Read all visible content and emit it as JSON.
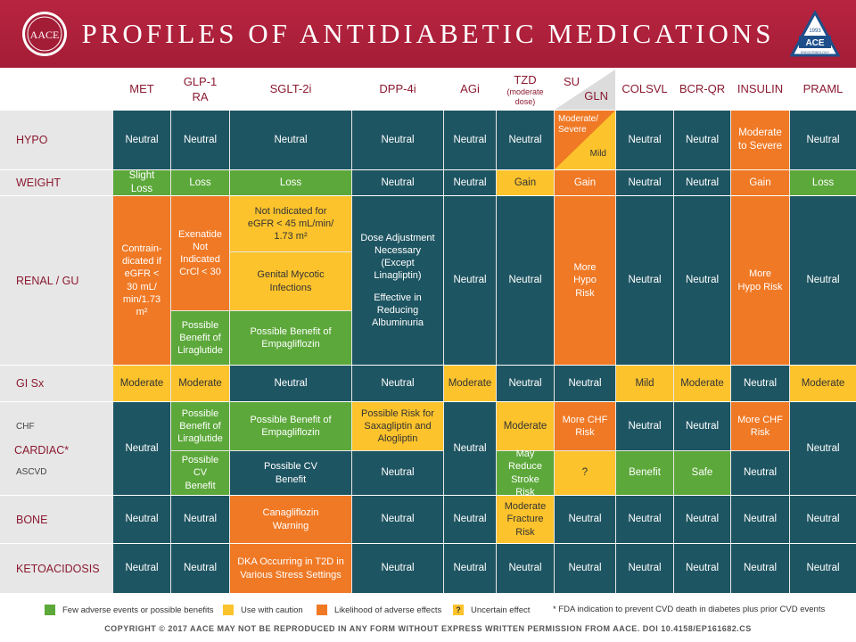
{
  "title": "PROFILES OF ANTIDIABETIC MEDICATIONS",
  "logos": {
    "left": "AACE",
    "right": "ACE",
    "right_year": "1993",
    "right_sub": "ENDOCRINOLOGY"
  },
  "colors": {
    "header_bg": "#ac2039",
    "teal": "#1e5562",
    "green": "#5ca83a",
    "yellow": "#fcc32c",
    "orange": "#f07925",
    "label_red": "#8b1a30",
    "row_band": "#e6e6e6"
  },
  "chart_data": {
    "type": "table",
    "columns": [
      {
        "label": "MET"
      },
      {
        "label": "GLP-1 RA"
      },
      {
        "label": "SGLT-2i"
      },
      {
        "label": "DPP-4i"
      },
      {
        "label": "AGi"
      },
      {
        "label": "TZD",
        "sublabel": "(moderate dose)"
      },
      {
        "label": "SU",
        "label2": "GLN"
      },
      {
        "label": "COLSVL"
      },
      {
        "label": "BCR-QR"
      },
      {
        "label": "INSULIN"
      },
      {
        "label": "PRAML"
      }
    ],
    "rows": [
      {
        "label": "HYPO"
      },
      {
        "label": "WEIGHT"
      },
      {
        "label": "RENAL / GU"
      },
      {
        "label": "GI Sx"
      },
      {
        "label": "CARDIAC*",
        "sublabels": [
          "CHF",
          "ASCVD"
        ]
      },
      {
        "label": "BONE"
      },
      {
        "label": "KETOACIDOSIS"
      }
    ],
    "cells": {
      "hypo": [
        "Neutral",
        "Neutral",
        "Neutral",
        "Neutral",
        "Neutral",
        "Neutral",
        "",
        "Neutral",
        "Neutral",
        "Moderate to Severe",
        "Neutral"
      ],
      "hypo_su": "Moderate/ Severe",
      "hypo_gln": "Mild",
      "weight": [
        "Slight Loss",
        "Loss",
        "Loss",
        "Neutral",
        "Neutral",
        "Gain",
        "Gain",
        "Neutral",
        "Neutral",
        "Gain",
        "Loss"
      ],
      "renal": {
        "met": "Contrain-dicated if eGFR < 30 mL/ min/1.73 m²",
        "glp1_top": "Exenatide Not Indicated CrCl < 30",
        "glp1_bottom": "Possible Benefit of Liraglutide",
        "sglt2_a": "Not Indicated for eGFR < 45 mL/min/ 1.73 m²",
        "sglt2_b": "Genital Mycotic Infections",
        "sglt2_c": "Possible Benefit of Empagliflozin",
        "dpp4_a": "Dose Adjustment Necessary (Except Linagliptin)",
        "dpp4_b": "Effective in Reducing Albuminuria",
        "agi": "Neutral",
        "tzd": "Neutral",
        "su": "More Hypo Risk",
        "colsvl": "Neutral",
        "bcrqr": "Neutral",
        "insulin": "More Hypo Risk",
        "praml": "Neutral"
      },
      "gi": [
        "Moderate",
        "Moderate",
        "Neutral",
        "Neutral",
        "Moderate",
        "Neutral",
        "Neutral",
        "Mild",
        "Moderate",
        "Neutral",
        "Moderate"
      ],
      "cardiac": {
        "met": "Neutral",
        "glp1_chf": "Possible Benefit of Liraglutide",
        "glp1_ascvd": "Possible CV Benefit",
        "sglt2_chf": "Possible Benefit of Empagliflozin",
        "sglt2_ascvd": "Possible CV Benefit",
        "dpp4_chf": "Possible Risk for Saxagliptin and Alogliptin",
        "dpp4_ascvd": "Neutral",
        "agi": "Neutral",
        "tzd_chf": "Moderate",
        "tzd_ascvd": "May Reduce Stroke Risk",
        "su_chf": "More CHF Risk",
        "su_ascvd": "?",
        "colsvl_chf": "Neutral",
        "colsvl_ascvd": "Benefit",
        "bcrqr_chf": "Neutral",
        "bcrqr_ascvd": "Safe",
        "insulin_chf": "More CHF Risk",
        "insulin_ascvd": "Neutral",
        "praml": "Neutral"
      },
      "bone": [
        "Neutral",
        "Neutral",
        "Canagliflozin Warning",
        "Neutral",
        "Neutral",
        "Moderate Fracture Risk",
        "Neutral",
        "Neutral",
        "Neutral",
        "Neutral",
        "Neutral"
      ],
      "keto": [
        "Neutral",
        "Neutral",
        "DKA Occurring in T2D in Various Stress Settings",
        "Neutral",
        "Neutral",
        "Neutral",
        "Neutral",
        "Neutral",
        "Neutral",
        "Neutral",
        "Neutral"
      ]
    },
    "legend": [
      {
        "label": "Few adverse events or possible benefits",
        "color": "#5ca83a"
      },
      {
        "label": "Use with caution",
        "color": "#fcc32c"
      },
      {
        "label": "Likelihood of adverse effects",
        "color": "#f07925"
      },
      {
        "label": "Uncertain effect",
        "color": "#fcc32c",
        "symbol": "?"
      }
    ],
    "footnote": "* FDA indication to prevent CVD death in diabetes plus prior CVD events"
  },
  "footer": "COPYRIGHT © 2017 AACE  MAY NOT BE REPRODUCED IN ANY FORM WITHOUT EXPRESS WRITTEN PERMISSION FROM AACE.  DOI 10.4158/EP161682.CS"
}
